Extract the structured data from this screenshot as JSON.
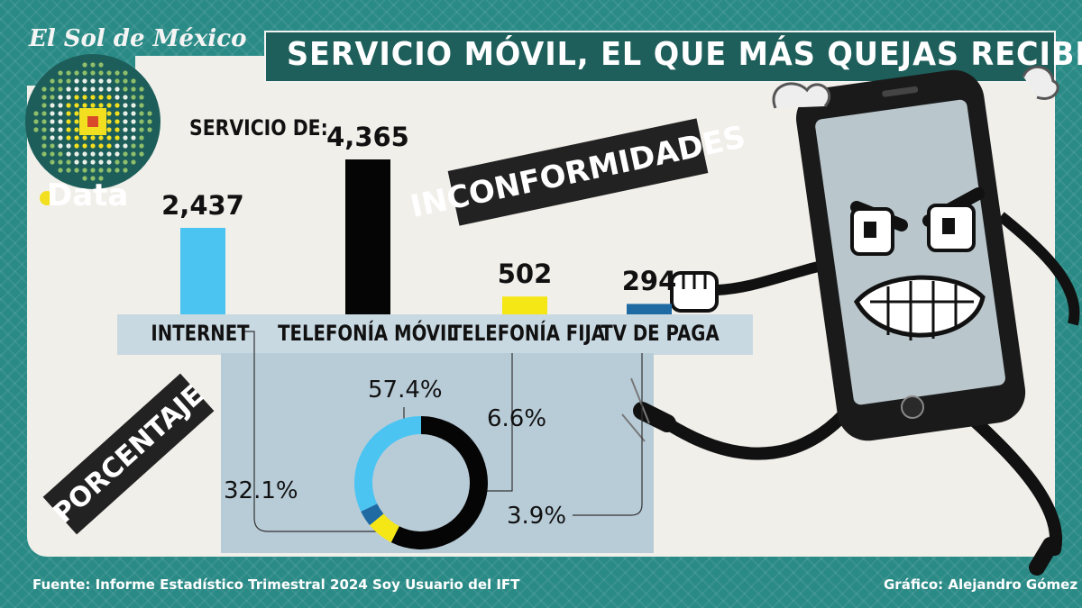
{
  "header": {
    "brand": "El Sol de México",
    "badge": "Data",
    "title": "SERVICIO MÓVIL, EL QUE MÁS QUEJAS RECIBE"
  },
  "labels": {
    "subtitle": "SERVICIO DE:",
    "banner_count": "INCONFORMIDADES",
    "banner_pct": "PORCENTAJE"
  },
  "footer": {
    "source": "Fuente: Informe Estadístico Trimestral 2024 Soy Usuario del IFT",
    "credit": "Gráfico: Alejandro Gómez"
  },
  "chart_data": [
    {
      "type": "bar",
      "title": "",
      "categories": [
        "INTERNET",
        "TELEFONÍA MÓVIL",
        "TELEFONÍA FIJA",
        "TV DE PAGA"
      ],
      "values": [
        2437,
        4365,
        502,
        294
      ],
      "value_labels": [
        "2,437",
        "4,365",
        "502",
        "294"
      ],
      "colors": [
        "#4cc4f2",
        "#050505",
        "#f5e615",
        "#1f6aa3"
      ],
      "ylim": [
        0,
        4365
      ]
    },
    {
      "type": "pie",
      "categories": [
        "TELEFONÍA MÓVIL",
        "TELEFONÍA FIJA",
        "TV DE PAGA",
        "INTERNET"
      ],
      "values": [
        57.4,
        6.6,
        3.9,
        32.1
      ],
      "value_labels": [
        "57.4%",
        "6.6%",
        "3.9%",
        "32.1%"
      ],
      "colors": [
        "#050505",
        "#f5e615",
        "#1f6aa3",
        "#4cc4f2"
      ]
    }
  ],
  "colors": {
    "background": "#2a8a86",
    "panel": "#f1efea",
    "title_box": "#1f5f5b"
  }
}
